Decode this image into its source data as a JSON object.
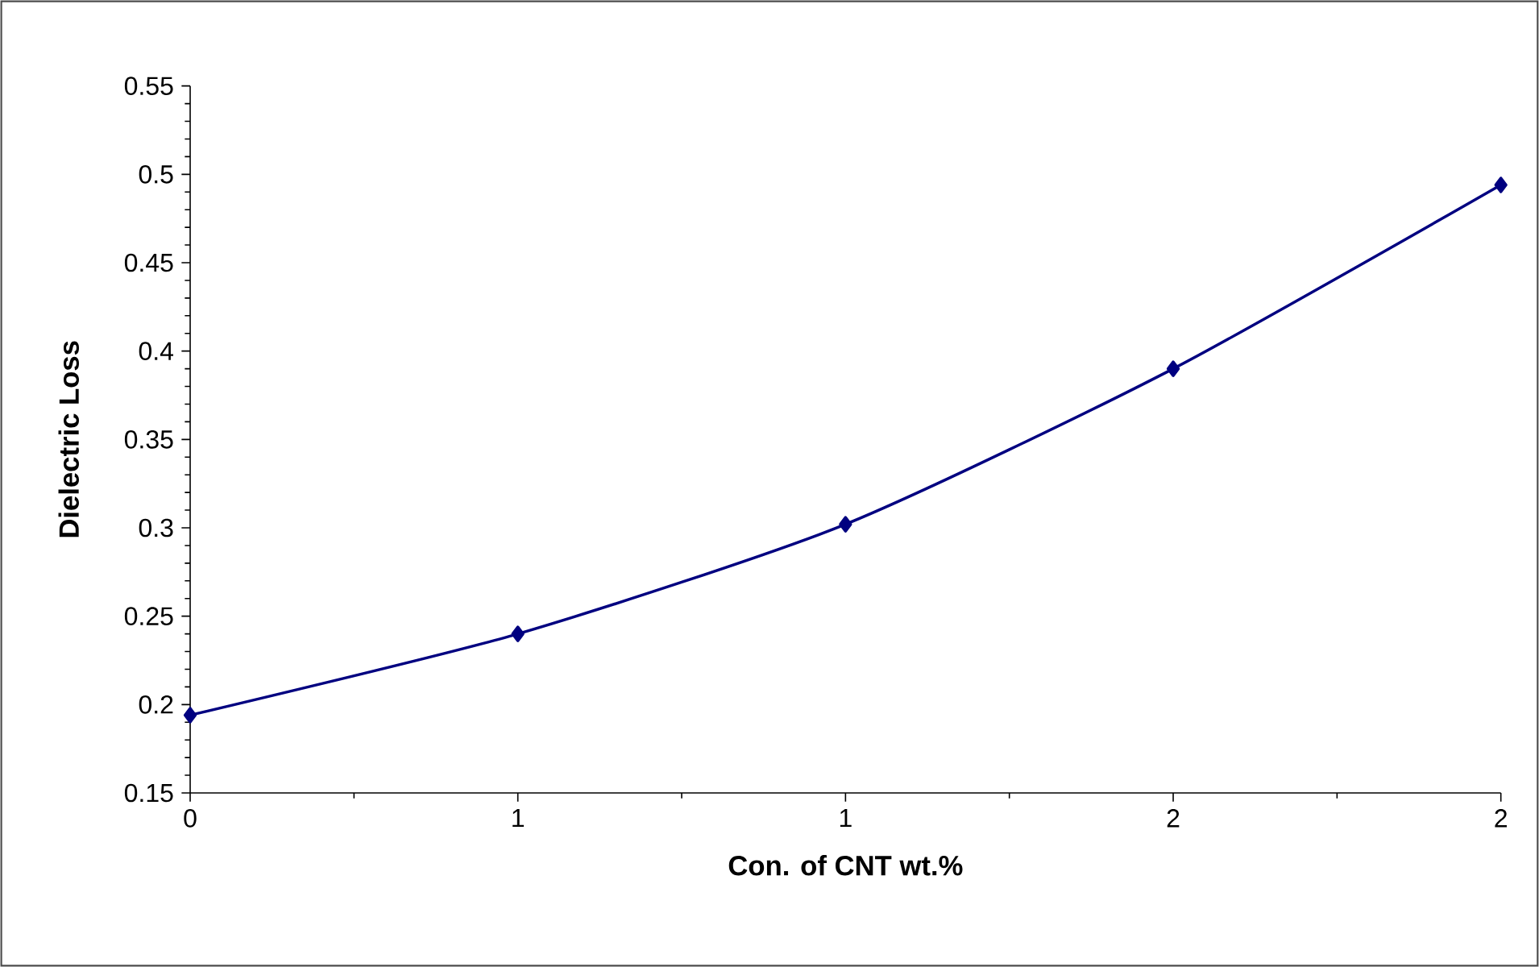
{
  "chart_data": {
    "type": "line",
    "xlabel": "Con. of CNT wt.%",
    "ylabel": "Dielectric Loss",
    "x": [
      0,
      0.5,
      1,
      1.5,
      2
    ],
    "series": [
      {
        "color": "#000080",
        "values": [
          0.194,
          0.24,
          0.302,
          0.39,
          0.494
        ]
      }
    ],
    "xlim": [
      0,
      2
    ],
    "xticks": [
      0,
      {
        "value": 0.5,
        "label": "1"
      },
      1,
      {
        "value": 1.5,
        "label": "2"
      },
      2
    ],
    "ylim": [
      0.15,
      0.55
    ],
    "yticks": [
      0.15,
      0.2,
      0.25,
      0.3,
      0.35,
      0.4,
      0.45,
      0.5,
      0.55
    ],
    "grid": false,
    "marker": "diamond",
    "line_style": "solid"
  }
}
